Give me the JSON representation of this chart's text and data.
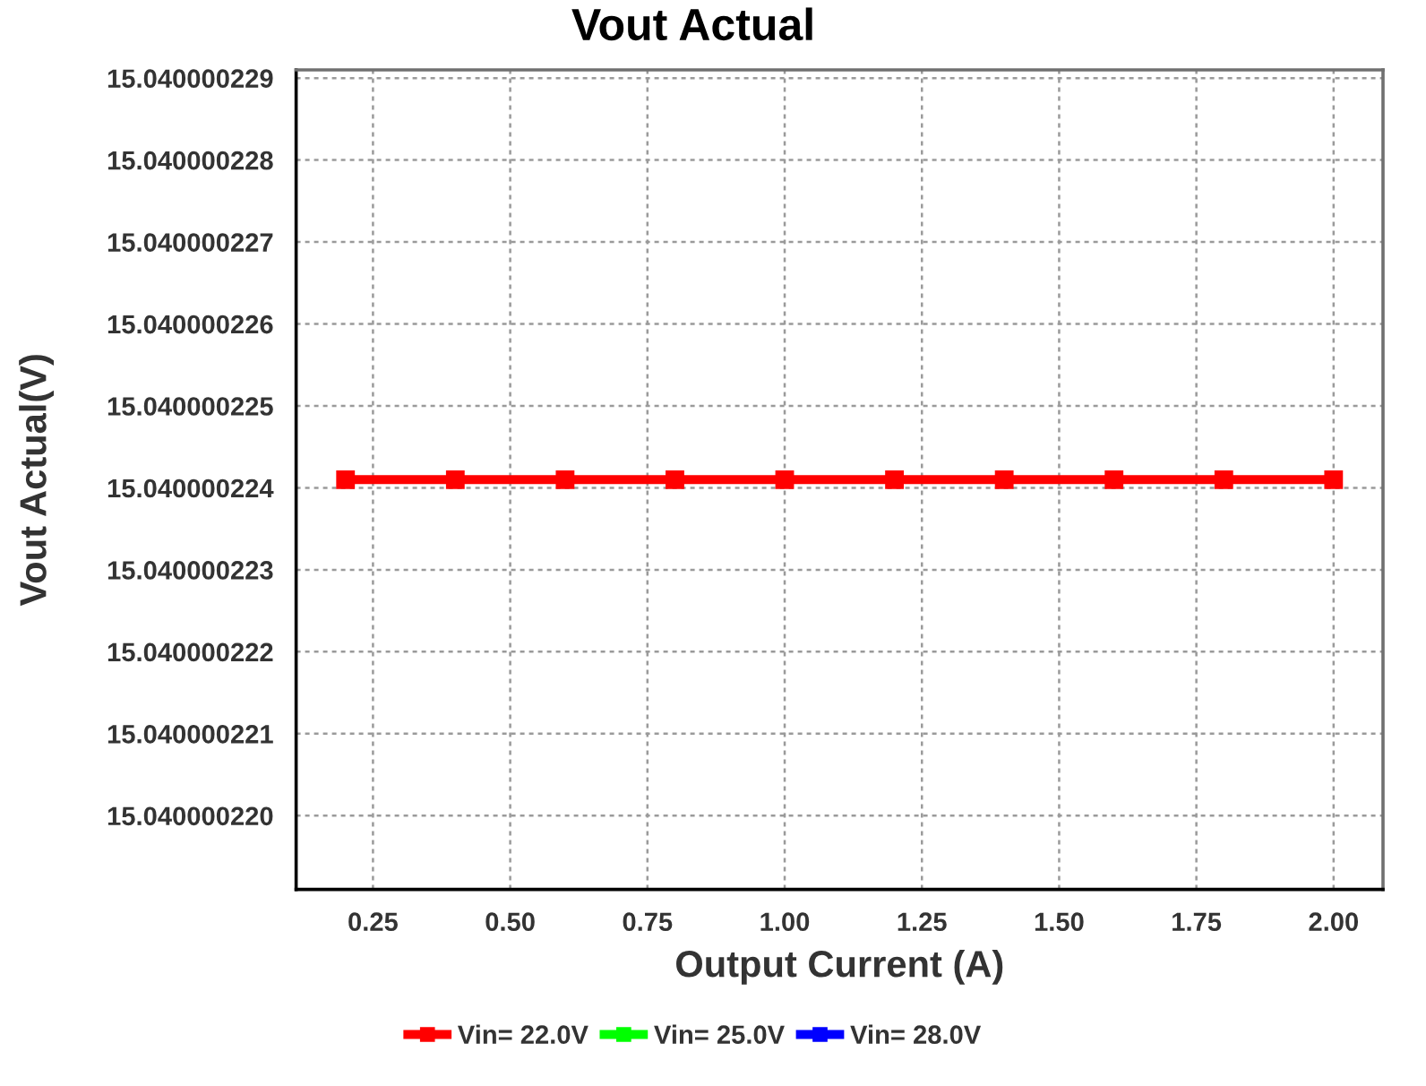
{
  "chart_data": {
    "type": "line",
    "title": "Vout Actual",
    "xlabel": "Output Current (A)",
    "ylabel": "Vout Actual(V)",
    "x": [
      0.2,
      0.4,
      0.6,
      0.8,
      1.0,
      1.2,
      1.4,
      1.6,
      1.8,
      2.0
    ],
    "series": [
      {
        "name": "Vin= 22.0V",
        "color": "#ff0000",
        "values": [
          15.0400002241,
          15.0400002241,
          15.0400002241,
          15.0400002241,
          15.0400002241,
          15.0400002241,
          15.0400002241,
          15.0400002241,
          15.0400002241,
          15.0400002241
        ]
      },
      {
        "name": "Vin= 25.0V",
        "color": "#00ff00",
        "values": [
          null,
          null,
          null,
          null,
          null,
          null,
          null,
          null,
          null,
          null
        ]
      },
      {
        "name": "Vin= 28.0V",
        "color": "#0000ff",
        "values": [
          null,
          null,
          null,
          null,
          null,
          null,
          null,
          null,
          null,
          null
        ]
      }
    ],
    "xlim": [
      0.11,
      2.09
    ],
    "xticks": [
      0.25,
      {
        "value": 0.5,
        "label": "0.50"
      },
      0.75,
      {
        "value": 1.0,
        "label": "1.00"
      },
      1.25,
      {
        "value": 1.5,
        "label": "1.50"
      },
      1.75,
      {
        "value": 2.0,
        "label": "2.00"
      }
    ],
    "ylim": [
      15.0400002191,
      15.0400002291
    ],
    "yticks": [
      {
        "value": 15.04000022,
        "label": "15.040000220"
      },
      15.040000221,
      15.040000222,
      15.040000223,
      15.040000224,
      15.040000225,
      15.040000226,
      15.040000227,
      15.040000228,
      15.040000229
    ],
    "grid": true,
    "legend": "bottom",
    "marker": "square",
    "line_style": "solid"
  }
}
